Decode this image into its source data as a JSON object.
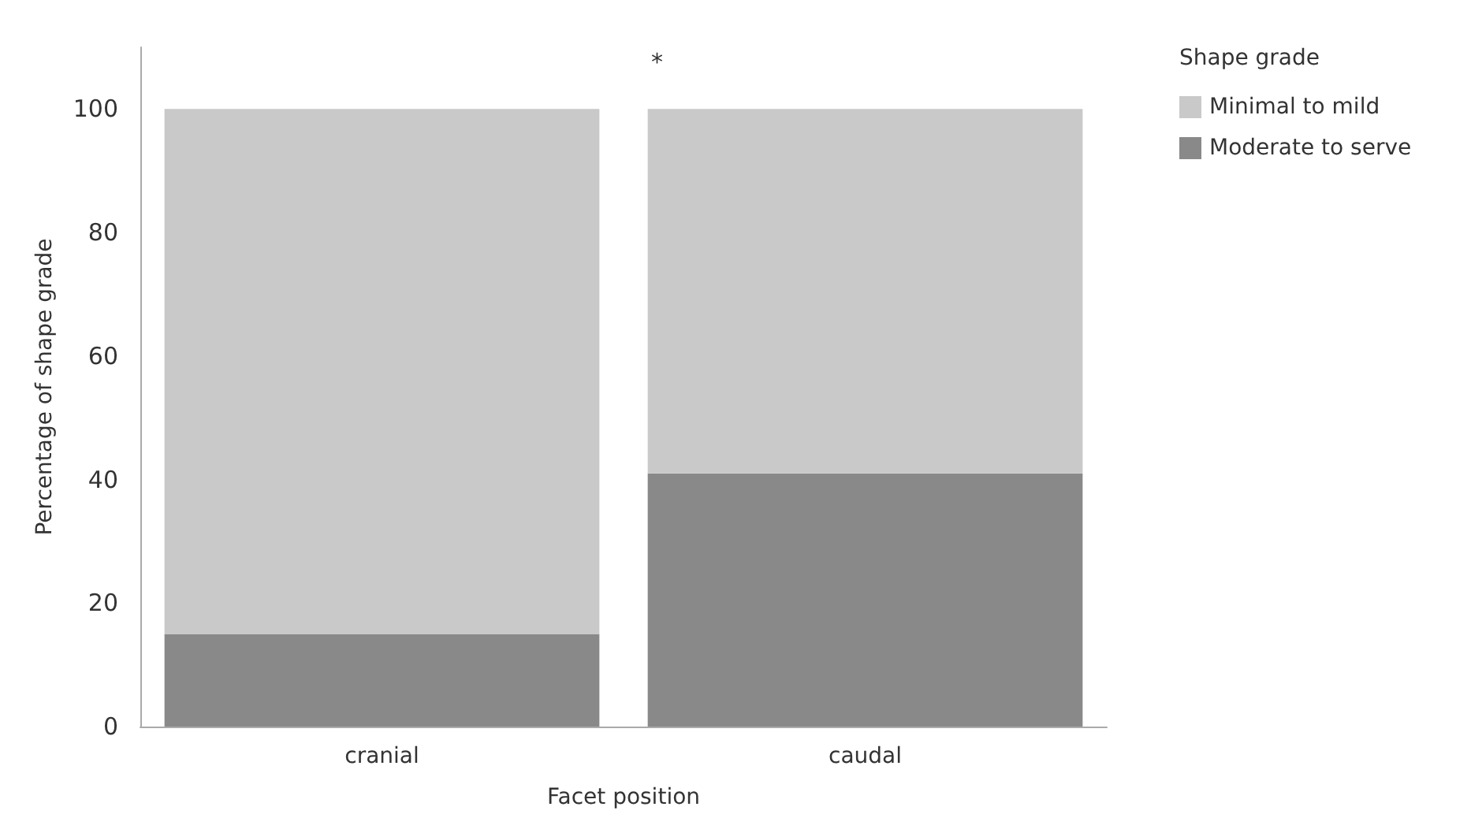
{
  "chart_data": {
    "type": "bar",
    "stacked": true,
    "xlabel": "Facet position",
    "ylabel": "Percentage of shape grade",
    "legend_title": "Shape grade",
    "legend": "top right",
    "grid": false,
    "annotations": [
      "*"
    ],
    "categories": [
      "cranial",
      "caudal"
    ],
    "series": [
      {
        "name": "Moderate to serve",
        "color": "#898989",
        "values": [
          15,
          41
        ]
      },
      {
        "name": "Minimal to mild",
        "color": "#c8c9c8",
        "values": [
          85,
          59
        ]
      }
    ],
    "ylim": [
      0,
      110
    ],
    "yticks": [
      0,
      20,
      40,
      60,
      80,
      100
    ]
  }
}
